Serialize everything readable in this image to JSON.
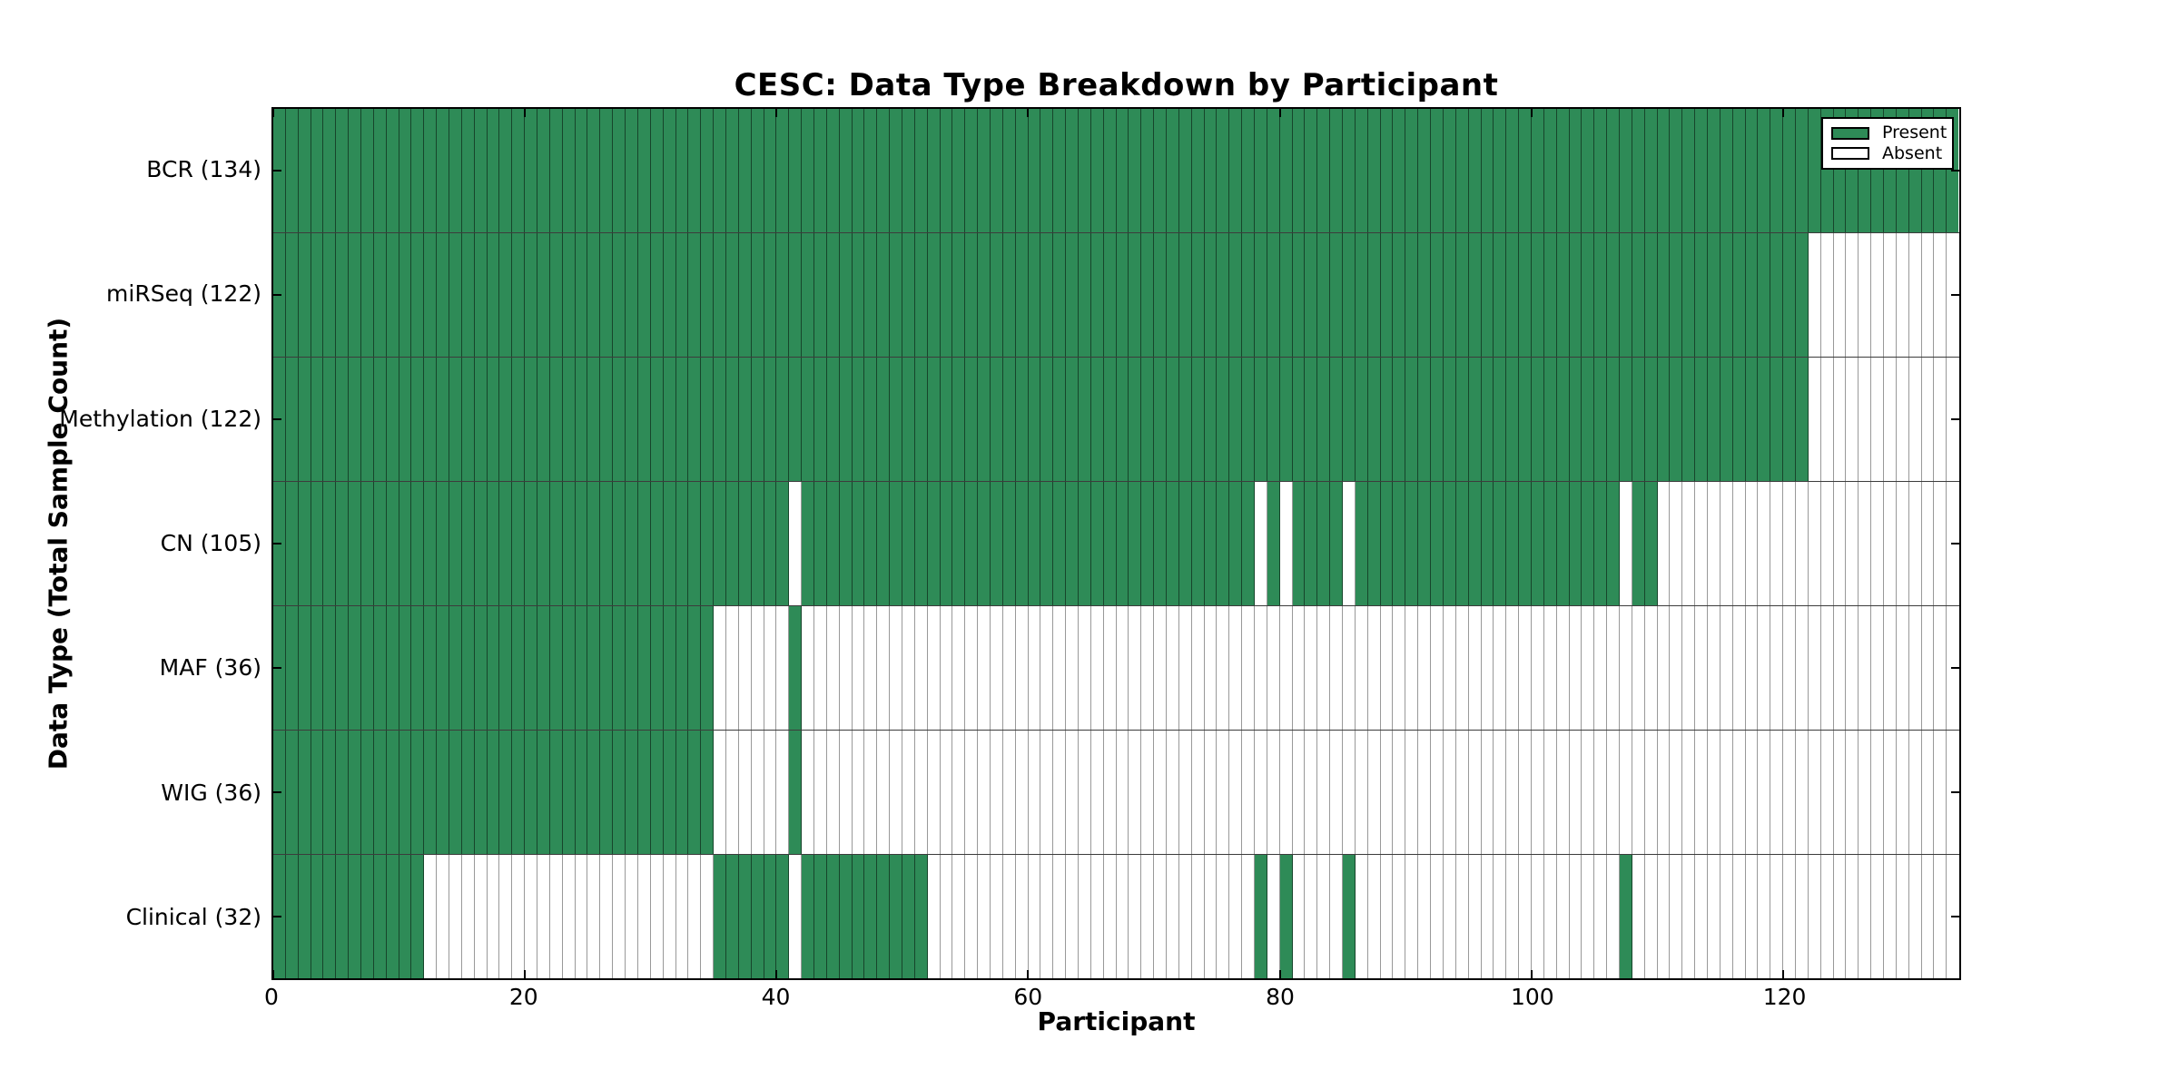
{
  "legend": {
    "items": [
      {
        "label": "Present",
        "color": "#2e8b57"
      },
      {
        "label": "Absent",
        "color": "#ffffff"
      }
    ]
  },
  "chart_data": {
    "type": "heatmap",
    "title": "CESC: Data Type Breakdown by Participant",
    "xlabel": "Participant",
    "ylabel": "Data Type (Total Sample Count)",
    "x_range": [
      0,
      134
    ],
    "x_ticks": [
      0,
      20,
      40,
      60,
      80,
      100,
      120
    ],
    "n_participants": 134,
    "grid": "per-cell borders, dark row separators",
    "legend_position": "upper right",
    "colors": {
      "present": "#2e8b57",
      "absent": "#ffffff"
    },
    "cell_states": [
      "present",
      "absent"
    ],
    "rows": [
      {
        "label": "BCR (134)",
        "data_type": "BCR",
        "total_samples": 134,
        "present_ranges": [
          [
            0,
            134
          ]
        ]
      },
      {
        "label": "miRSeq (122)",
        "data_type": "miRSeq",
        "total_samples": 122,
        "present_ranges": [
          [
            0,
            122
          ]
        ]
      },
      {
        "label": "Methylation (122)",
        "data_type": "Methylation",
        "total_samples": 122,
        "present_ranges": [
          [
            0,
            122
          ]
        ]
      },
      {
        "label": "CN (105)",
        "data_type": "CN",
        "total_samples": 105,
        "present_ranges": [
          [
            0,
            41
          ],
          [
            42,
            78
          ],
          [
            79,
            80
          ],
          [
            81,
            85
          ],
          [
            86,
            107
          ],
          [
            108,
            110
          ]
        ]
      },
      {
        "label": "MAF (36)",
        "data_type": "MAF",
        "total_samples": 36,
        "present_ranges": [
          [
            0,
            35
          ],
          [
            41,
            42
          ]
        ]
      },
      {
        "label": "WIG (36)",
        "data_type": "WIG",
        "total_samples": 36,
        "present_ranges": [
          [
            0,
            35
          ],
          [
            41,
            42
          ]
        ]
      },
      {
        "label": "Clinical (32)",
        "data_type": "Clinical",
        "total_samples": 32,
        "present_ranges": [
          [
            0,
            12
          ],
          [
            35,
            41
          ],
          [
            42,
            52
          ],
          [
            78,
            79
          ],
          [
            80,
            81
          ],
          [
            85,
            86
          ],
          [
            107,
            108
          ]
        ]
      }
    ]
  }
}
